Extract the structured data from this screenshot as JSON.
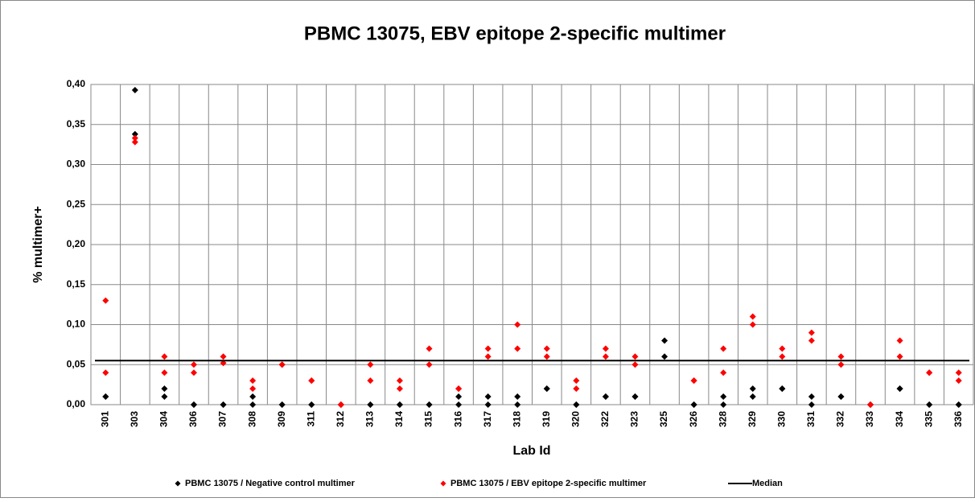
{
  "chart_data": {
    "type": "scatter",
    "title": "PBMC 13075, EBV epitope 2-specific multimer",
    "x_label": "Lab Id",
    "y_label": "% multimer+",
    "categories": [
      "301",
      "303",
      "304",
      "306",
      "307",
      "308",
      "309",
      "311",
      "312",
      "313",
      "314",
      "315",
      "316",
      "317",
      "318",
      "319",
      "320",
      "322",
      "323",
      "325",
      "326",
      "328",
      "329",
      "330",
      "331",
      "332",
      "333",
      "334",
      "335",
      "336"
    ],
    "series": [
      {
        "name": "PBMC 13075 / Negative control multimer",
        "color": "#000000",
        "values": [
          [
            0.01,
            0.01
          ],
          [
            0.393,
            0.338
          ],
          [
            0.02,
            0.01
          ],
          [
            0,
            0
          ],
          [
            0,
            0
          ],
          [
            0.01,
            0
          ],
          [
            0,
            0
          ],
          [
            0,
            0
          ],
          [
            0,
            0
          ],
          [
            0,
            0
          ],
          [
            0,
            0
          ],
          [
            0,
            0
          ],
          [
            0.01,
            0
          ],
          [
            0.01,
            0
          ],
          [
            0.01,
            0
          ],
          [
            0.02,
            0.02
          ],
          [
            0,
            0
          ],
          [
            0.01,
            0.01
          ],
          [
            0.01,
            0.01
          ],
          [
            0.08,
            0.06
          ],
          [
            0,
            0
          ],
          [
            0.01,
            0
          ],
          [
            0.02,
            0.01
          ],
          [
            0.02,
            0.02
          ],
          [
            0.01,
            0
          ],
          [
            0.01,
            0.01
          ],
          [
            0,
            0
          ],
          [
            0.02,
            0.02
          ],
          [
            0,
            0
          ],
          [
            0,
            0
          ]
        ]
      },
      {
        "name": "PBMC 13075 / EBV epitope 2-specific multimer",
        "color": "#ff0000",
        "values": [
          [
            0.13,
            0.04
          ],
          [
            0.333,
            0.328
          ],
          [
            0.06,
            0.04
          ],
          [
            0.05,
            0.04
          ],
          [
            0.06,
            0.052
          ],
          [
            0.03,
            0.02
          ],
          [
            0.05,
            0.05
          ],
          [
            0.03,
            0.03
          ],
          [
            0,
            0
          ],
          [
            0.05,
            0.03
          ],
          [
            0.03,
            0.02
          ],
          [
            0.07,
            0.05
          ],
          [
            0.02,
            0.02
          ],
          [
            0.07,
            0.06
          ],
          [
            0.1,
            0.07
          ],
          [
            0.07,
            0.06
          ],
          [
            0.03,
            0.02
          ],
          [
            0.07,
            0.06
          ],
          [
            0.06,
            0.05
          ],
          [
            null,
            null
          ],
          [
            0.03,
            0.03
          ],
          [
            0.07,
            0.04
          ],
          [
            0.11,
            0.1
          ],
          [
            0.07,
            0.06
          ],
          [
            0.09,
            0.08
          ],
          [
            0.06,
            0.05
          ],
          [
            0,
            0
          ],
          [
            0.08,
            0.06
          ],
          [
            0.04,
            0.04
          ],
          [
            0.04,
            0.03
          ]
        ]
      }
    ],
    "median": {
      "name": "Median",
      "color": "#000000",
      "value": 0.055
    },
    "ylim": [
      0,
      0.4
    ],
    "yticks": [
      {
        "value": 0,
        "label": "0,00"
      },
      {
        "value": 0.05,
        "label": "0,05"
      },
      {
        "value": 0.1,
        "label": "0,10"
      },
      {
        "value": 0.15,
        "label": "0,15"
      },
      {
        "value": 0.2,
        "label": "0,20"
      },
      {
        "value": 0.25,
        "label": "0,25"
      },
      {
        "value": 0.3,
        "label": "0,30"
      },
      {
        "value": 0.35,
        "label": "0,35"
      },
      {
        "value": 0.4,
        "label": "0,40"
      }
    ],
    "grid": true
  }
}
